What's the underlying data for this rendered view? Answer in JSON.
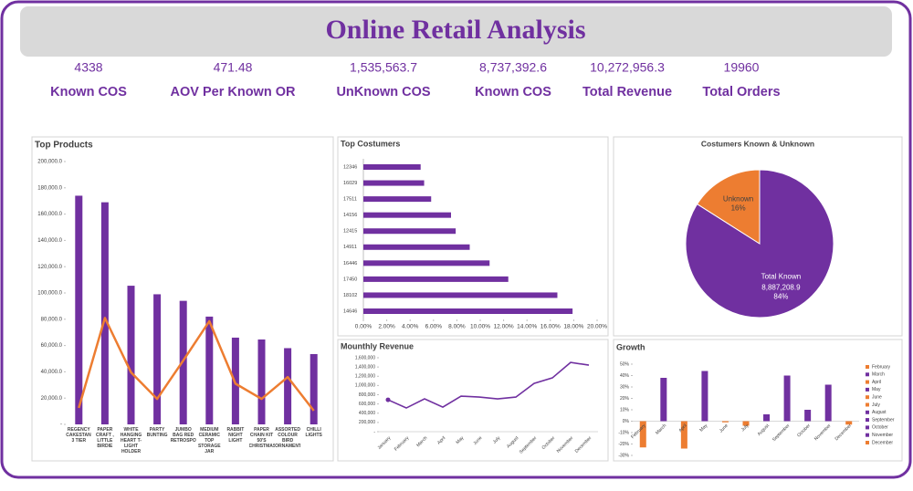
{
  "header": {
    "title": "Online Retail Analysis"
  },
  "kpis": [
    {
      "value": "4338",
      "label": "Known COS"
    },
    {
      "value": "471.48",
      "label": "AOV Per Known OR"
    },
    {
      "value": "1,535,563.7",
      "label": "UnKnown COS"
    },
    {
      "value": "8,737,392.6",
      "label": "Known COS"
    },
    {
      "value": "10,272,956.3",
      "label": "Total Revenue"
    },
    {
      "value": "19960",
      "label": "Total Orders"
    }
  ],
  "chart_data": [
    {
      "type": "combo",
      "title": "Top Products",
      "categories": [
        "REGENCY CAKESTAND 3 TIER",
        "PAPER CRAFT , LITTLE BIRDIE",
        "WHITE HANGING HEART T-LIGHT HOLDER",
        "PARTY BUNTING",
        "JUMBO BAG RED RETROSPOT",
        "MEDIUM CERAMIC TOP STORAGE JAR",
        "RABBIT NIGHT LIGHT",
        "PAPER CHAIN KIT 50'S CHRISTMAS",
        "ASSORTED COLOUR BIRD ORNAMENT",
        "CHILLI LIGHTS"
      ],
      "series": [
        {
          "type": "bar",
          "color": "#7030a0",
          "values": [
            174000,
            169000,
            105500,
            99000,
            94000,
            82000,
            66000,
            64600,
            58000,
            53500
          ]
        },
        {
          "type": "line",
          "color": "#ed7d31",
          "values": [
            12500,
            81000,
            39600,
            19400,
            48600,
            78500,
            31000,
            19400,
            36000,
            10400
          ]
        }
      ],
      "ylim": [
        0,
        200000
      ],
      "yticks": [
        {
          "value": 0,
          "label": "-"
        },
        {
          "value": 20000,
          "label": "20,000.0"
        },
        {
          "value": 40000,
          "label": "40,000.0"
        },
        {
          "value": 60000,
          "label": "60,000.0"
        },
        {
          "value": 80000,
          "label": "80,000.0"
        },
        {
          "value": 100000,
          "label": "100,000.0"
        },
        {
          "value": 120000,
          "label": "120,000.0"
        },
        {
          "value": 140000,
          "label": "140,000.0"
        },
        {
          "value": 160000,
          "label": "160,000.0"
        },
        {
          "value": 180000,
          "label": "180,000.0"
        },
        {
          "value": 200000,
          "label": "200,000.0"
        }
      ]
    },
    {
      "type": "hbar",
      "title": "Top Costumers",
      "categories": [
        "12346",
        "16029",
        "17511",
        "14156",
        "12415",
        "14911",
        "16446",
        "17450",
        "18102",
        "14646"
      ],
      "values": [
        4.9,
        5.2,
        5.8,
        7.5,
        7.9,
        9.1,
        10.8,
        12.4,
        16.6,
        17.9
      ],
      "color": "#7030a0",
      "xlim": [
        0,
        20
      ],
      "xticks": [
        {
          "value": 0,
          "label": "0.00%"
        },
        {
          "value": 2,
          "label": "2.00%"
        },
        {
          "value": 4,
          "label": "4.00%"
        },
        {
          "value": 6,
          "label": "6.00%"
        },
        {
          "value": 8,
          "label": "8.00%"
        },
        {
          "value": 10,
          "label": "10.00%"
        },
        {
          "value": 12,
          "label": "12.00%"
        },
        {
          "value": 14,
          "label": "14.00%"
        },
        {
          "value": 16,
          "label": "16.00%"
        },
        {
          "value": 18,
          "label": "18.00%"
        },
        {
          "value": 20,
          "label": "20.00%"
        }
      ]
    },
    {
      "type": "pie",
      "title": "Costumers Known & Unknown",
      "categories": [
        "Total Known",
        "Unknown"
      ],
      "values": [
        84,
        16
      ],
      "value_labels": [
        "84%",
        "16%"
      ],
      "colors": [
        "#7030a0",
        "#ed7d31"
      ],
      "annotations": [
        "8,887,208.9"
      ]
    },
    {
      "type": "line",
      "title": "Mounthly Revenue",
      "categories": [
        "January",
        "February",
        "March",
        "April",
        "May",
        "June",
        "July",
        "August",
        "September",
        "October",
        "November",
        "December"
      ],
      "values": [
        690000,
        513000,
        710000,
        532000,
        769000,
        749000,
        710000,
        749000,
        1045000,
        1164000,
        1499000,
        1440000
      ],
      "color": "#7030a0",
      "ylim": [
        0,
        1600000
      ],
      "yticks": [
        {
          "value": 0,
          "label": "-"
        },
        {
          "value": 200000,
          "label": "200,000"
        },
        {
          "value": 400000,
          "label": "400,000"
        },
        {
          "value": 600000,
          "label": "600,000"
        },
        {
          "value": 800000,
          "label": "800,000"
        },
        {
          "value": 1000000,
          "label": "1,000,000"
        },
        {
          "value": 1200000,
          "label": "1,200,000"
        },
        {
          "value": 1400000,
          "label": "1,400,000"
        },
        {
          "value": 1600000,
          "label": "1,600,000"
        }
      ]
    },
    {
      "type": "bar",
      "title": "Growth",
      "categories": [
        "February",
        "March",
        "April",
        "May",
        "June",
        "July",
        "August",
        "September",
        "October",
        "November",
        "December"
      ],
      "values": [
        -23,
        38,
        -24,
        44,
        -1,
        -4,
        6,
        40,
        10,
        32,
        -3
      ],
      "colors": [
        "#ed7d31",
        "#7030a0",
        "#ed7d31",
        "#7030a0",
        "#ed7d31",
        "#ed7d31",
        "#7030a0",
        "#7030a0",
        "#7030a0",
        "#7030a0",
        "#ed7d31"
      ],
      "ylim": [
        -30,
        50
      ],
      "yticks": [
        {
          "value": -30,
          "label": "-30%"
        },
        {
          "value": -20,
          "label": "-20%"
        },
        {
          "value": -10,
          "label": "-10%"
        },
        {
          "value": 0,
          "label": "0%"
        },
        {
          "value": 10,
          "label": "10%"
        },
        {
          "value": 20,
          "label": "20%"
        },
        {
          "value": 30,
          "label": "30%"
        },
        {
          "value": 40,
          "label": "40%"
        },
        {
          "value": 50,
          "label": "50%"
        }
      ],
      "legend": "right"
    }
  ]
}
